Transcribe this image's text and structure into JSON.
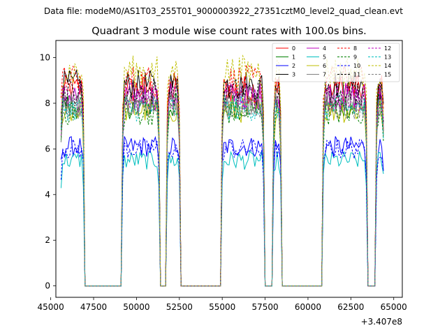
{
  "chart_data": {
    "type": "line",
    "suptitle": "Data file: modeM0/AS1T03_255T01_9000003922_27351cztM0_level2_quad_clean.evt",
    "title": "Quadrant 3 module wise count rates with 100.0s bins.",
    "xlabel": "",
    "ylabel": "",
    "x_offset_label": "+3.407e8",
    "xlim": [
      45300,
      65500
    ],
    "ylim": [
      -0.5,
      10.75
    ],
    "x_ticks": [
      45000,
      47500,
      50000,
      52500,
      55000,
      57500,
      60000,
      62500,
      65000
    ],
    "x_tick_labels": [
      "45000",
      "47500",
      "50000",
      "52500",
      "55000",
      "57500",
      "60000",
      "62500",
      "65000"
    ],
    "y_ticks": [
      0,
      2,
      4,
      6,
      8,
      10
    ],
    "y_tick_labels": [
      "0",
      "2",
      "4",
      "6",
      "8",
      "10"
    ],
    "legend_position": "upper right",
    "legend_columns": 4,
    "on_intervals": [
      [
        45600,
        46900
      ],
      [
        49200,
        51350
      ],
      [
        51750,
        52550
      ],
      [
        55000,
        57450
      ],
      [
        57950,
        58450
      ],
      [
        60850,
        63450
      ],
      [
        64000,
        64400
      ]
    ],
    "series": [
      {
        "name": "0",
        "color": "#ff0000",
        "dash": "solid",
        "level": 8.6
      },
      {
        "name": "1",
        "color": "#008000",
        "dash": "solid",
        "level": 7.9
      },
      {
        "name": "2",
        "color": "#0000ff",
        "dash": "solid",
        "level": 6.1
      },
      {
        "name": "3",
        "color": "#000000",
        "dash": "solid",
        "level": 8.8
      },
      {
        "name": "4",
        "color": "#bf00bf",
        "dash": "solid",
        "level": 8.3
      },
      {
        "name": "5",
        "color": "#00bfbf",
        "dash": "solid",
        "level": 5.5
      },
      {
        "name": "6",
        "color": "#bfbf00",
        "dash": "solid",
        "level": 7.7
      },
      {
        "name": "7",
        "color": "#808080",
        "dash": "solid",
        "level": 8.0
      },
      {
        "name": "8",
        "color": "#ff0000",
        "dash": "dashed",
        "level": 9.0
      },
      {
        "name": "9",
        "color": "#008000",
        "dash": "dashed",
        "level": 7.6
      },
      {
        "name": "10",
        "color": "#0000ff",
        "dash": "dashed",
        "level": 6.0
      },
      {
        "name": "11",
        "color": "#000000",
        "dash": "dashed",
        "level": 8.5
      },
      {
        "name": "12",
        "color": "#bf00bf",
        "dash": "dashed",
        "level": 8.2
      },
      {
        "name": "13",
        "color": "#00bfbf",
        "dash": "dashed",
        "level": 7.8
      },
      {
        "name": "14",
        "color": "#bfbf00",
        "dash": "dashed",
        "level": 9.4
      },
      {
        "name": "15",
        "color": "#808080",
        "dash": "dashed",
        "level": 7.9
      }
    ]
  }
}
